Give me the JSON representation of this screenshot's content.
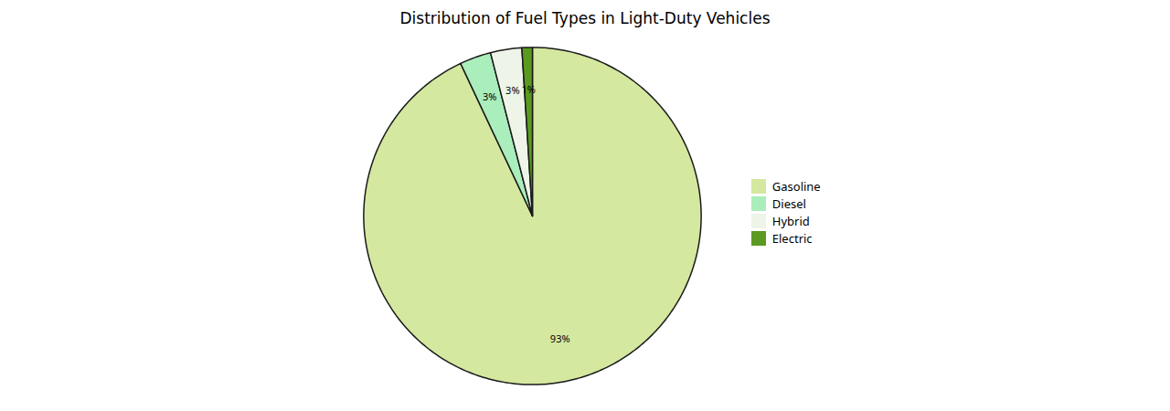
{
  "chart_data": {
    "type": "pie",
    "title": "Distribution of Fuel Types in Light-Duty Vehicles",
    "categories": [
      "Gasoline",
      "Diesel",
      "Hybrid",
      "Electric"
    ],
    "values": [
      93,
      3,
      3,
      1
    ],
    "value_labels": [
      "93%",
      "3%",
      "3%",
      "1%"
    ],
    "colors": [
      "#d4e8a0",
      "#aaeebb",
      "#eef5e8",
      "#5a9a20"
    ],
    "data_labels": true,
    "legend": "right"
  }
}
